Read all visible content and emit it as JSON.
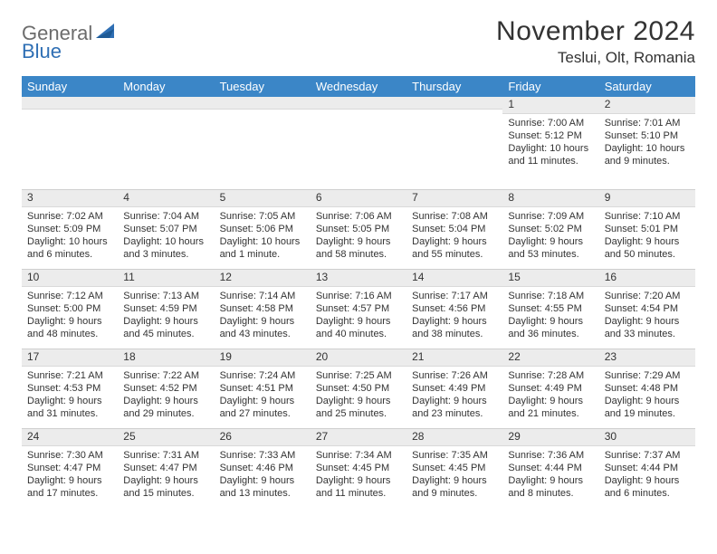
{
  "logo": {
    "general": "General",
    "blue": "Blue"
  },
  "title": "November 2024",
  "location": "Teslui, Olt, Romania",
  "colors": {
    "header_bg": "#3b86c7",
    "strip_bg": "#ececec",
    "text": "#333333",
    "logo_gray": "#6c6c6c",
    "logo_blue": "#2f6fb4"
  },
  "weekdays": [
    "Sunday",
    "Monday",
    "Tuesday",
    "Wednesday",
    "Thursday",
    "Friday",
    "Saturday"
  ],
  "weeks": [
    [
      null,
      null,
      null,
      null,
      null,
      {
        "num": "1",
        "sunrise": "Sunrise: 7:00 AM",
        "sunset": "Sunset: 5:12 PM",
        "daylight": "Daylight: 10 hours and 11 minutes."
      },
      {
        "num": "2",
        "sunrise": "Sunrise: 7:01 AM",
        "sunset": "Sunset: 5:10 PM",
        "daylight": "Daylight: 10 hours and 9 minutes."
      }
    ],
    [
      {
        "num": "3",
        "sunrise": "Sunrise: 7:02 AM",
        "sunset": "Sunset: 5:09 PM",
        "daylight": "Daylight: 10 hours and 6 minutes."
      },
      {
        "num": "4",
        "sunrise": "Sunrise: 7:04 AM",
        "sunset": "Sunset: 5:07 PM",
        "daylight": "Daylight: 10 hours and 3 minutes."
      },
      {
        "num": "5",
        "sunrise": "Sunrise: 7:05 AM",
        "sunset": "Sunset: 5:06 PM",
        "daylight": "Daylight: 10 hours and 1 minute."
      },
      {
        "num": "6",
        "sunrise": "Sunrise: 7:06 AM",
        "sunset": "Sunset: 5:05 PM",
        "daylight": "Daylight: 9 hours and 58 minutes."
      },
      {
        "num": "7",
        "sunrise": "Sunrise: 7:08 AM",
        "sunset": "Sunset: 5:04 PM",
        "daylight": "Daylight: 9 hours and 55 minutes."
      },
      {
        "num": "8",
        "sunrise": "Sunrise: 7:09 AM",
        "sunset": "Sunset: 5:02 PM",
        "daylight": "Daylight: 9 hours and 53 minutes."
      },
      {
        "num": "9",
        "sunrise": "Sunrise: 7:10 AM",
        "sunset": "Sunset: 5:01 PM",
        "daylight": "Daylight: 9 hours and 50 minutes."
      }
    ],
    [
      {
        "num": "10",
        "sunrise": "Sunrise: 7:12 AM",
        "sunset": "Sunset: 5:00 PM",
        "daylight": "Daylight: 9 hours and 48 minutes."
      },
      {
        "num": "11",
        "sunrise": "Sunrise: 7:13 AM",
        "sunset": "Sunset: 4:59 PM",
        "daylight": "Daylight: 9 hours and 45 minutes."
      },
      {
        "num": "12",
        "sunrise": "Sunrise: 7:14 AM",
        "sunset": "Sunset: 4:58 PM",
        "daylight": "Daylight: 9 hours and 43 minutes."
      },
      {
        "num": "13",
        "sunrise": "Sunrise: 7:16 AM",
        "sunset": "Sunset: 4:57 PM",
        "daylight": "Daylight: 9 hours and 40 minutes."
      },
      {
        "num": "14",
        "sunrise": "Sunrise: 7:17 AM",
        "sunset": "Sunset: 4:56 PM",
        "daylight": "Daylight: 9 hours and 38 minutes."
      },
      {
        "num": "15",
        "sunrise": "Sunrise: 7:18 AM",
        "sunset": "Sunset: 4:55 PM",
        "daylight": "Daylight: 9 hours and 36 minutes."
      },
      {
        "num": "16",
        "sunrise": "Sunrise: 7:20 AM",
        "sunset": "Sunset: 4:54 PM",
        "daylight": "Daylight: 9 hours and 33 minutes."
      }
    ],
    [
      {
        "num": "17",
        "sunrise": "Sunrise: 7:21 AM",
        "sunset": "Sunset: 4:53 PM",
        "daylight": "Daylight: 9 hours and 31 minutes."
      },
      {
        "num": "18",
        "sunrise": "Sunrise: 7:22 AM",
        "sunset": "Sunset: 4:52 PM",
        "daylight": "Daylight: 9 hours and 29 minutes."
      },
      {
        "num": "19",
        "sunrise": "Sunrise: 7:24 AM",
        "sunset": "Sunset: 4:51 PM",
        "daylight": "Daylight: 9 hours and 27 minutes."
      },
      {
        "num": "20",
        "sunrise": "Sunrise: 7:25 AM",
        "sunset": "Sunset: 4:50 PM",
        "daylight": "Daylight: 9 hours and 25 minutes."
      },
      {
        "num": "21",
        "sunrise": "Sunrise: 7:26 AM",
        "sunset": "Sunset: 4:49 PM",
        "daylight": "Daylight: 9 hours and 23 minutes."
      },
      {
        "num": "22",
        "sunrise": "Sunrise: 7:28 AM",
        "sunset": "Sunset: 4:49 PM",
        "daylight": "Daylight: 9 hours and 21 minutes."
      },
      {
        "num": "23",
        "sunrise": "Sunrise: 7:29 AM",
        "sunset": "Sunset: 4:48 PM",
        "daylight": "Daylight: 9 hours and 19 minutes."
      }
    ],
    [
      {
        "num": "24",
        "sunrise": "Sunrise: 7:30 AM",
        "sunset": "Sunset: 4:47 PM",
        "daylight": "Daylight: 9 hours and 17 minutes."
      },
      {
        "num": "25",
        "sunrise": "Sunrise: 7:31 AM",
        "sunset": "Sunset: 4:47 PM",
        "daylight": "Daylight: 9 hours and 15 minutes."
      },
      {
        "num": "26",
        "sunrise": "Sunrise: 7:33 AM",
        "sunset": "Sunset: 4:46 PM",
        "daylight": "Daylight: 9 hours and 13 minutes."
      },
      {
        "num": "27",
        "sunrise": "Sunrise: 7:34 AM",
        "sunset": "Sunset: 4:45 PM",
        "daylight": "Daylight: 9 hours and 11 minutes."
      },
      {
        "num": "28",
        "sunrise": "Sunrise: 7:35 AM",
        "sunset": "Sunset: 4:45 PM",
        "daylight": "Daylight: 9 hours and 9 minutes."
      },
      {
        "num": "29",
        "sunrise": "Sunrise: 7:36 AM",
        "sunset": "Sunset: 4:44 PM",
        "daylight": "Daylight: 9 hours and 8 minutes."
      },
      {
        "num": "30",
        "sunrise": "Sunrise: 7:37 AM",
        "sunset": "Sunset: 4:44 PM",
        "daylight": "Daylight: 9 hours and 6 minutes."
      }
    ]
  ]
}
